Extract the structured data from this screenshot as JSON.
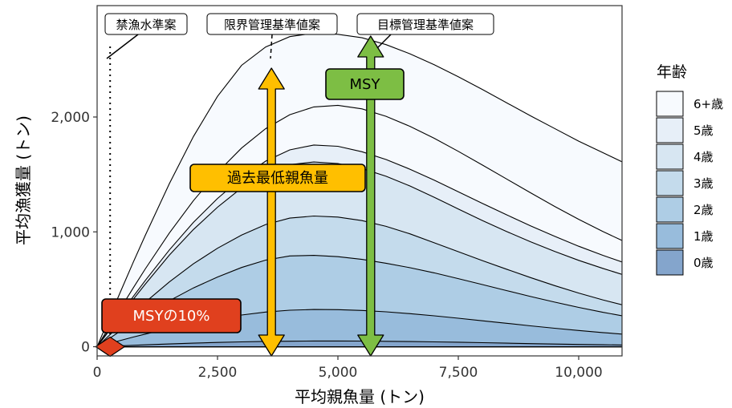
{
  "chart_data": {
    "type": "area",
    "xlabel": "平均親魚量 (トン)",
    "ylabel": "平均漁獲量 (トン)",
    "xlim": [
      0,
      10900
    ],
    "ylim": [
      -80,
      2970
    ],
    "x_ticks": [
      0,
      2500,
      5000,
      7500,
      10000
    ],
    "x_tick_labels": [
      "0",
      "2,500",
      "5,000",
      "7,500",
      "10,000"
    ],
    "y_ticks": [
      0,
      1000,
      2000
    ],
    "y_tick_labels": [
      "0",
      "1,000",
      "2,000"
    ],
    "grid": false,
    "legend": {
      "title": "年齢",
      "position": "right",
      "entries": [
        {
          "label": "6+歳",
          "color": "#F7FAFE"
        },
        {
          "label": "5歳",
          "color": "#E7EFF8"
        },
        {
          "label": "4歳",
          "color": "#D7E6F2"
        },
        {
          "label": "3歳",
          "color": "#C4DBEC"
        },
        {
          "label": "2歳",
          "color": "#AECDE5"
        },
        {
          "label": "1歳",
          "color": "#98BCDC"
        },
        {
          "label": "0歳",
          "color": "#84A5CC"
        }
      ]
    },
    "x": [
      0,
      250,
      500,
      750,
      1000,
      1500,
      2000,
      2500,
      3000,
      3500,
      4000,
      4500,
      5000,
      5500,
      6000,
      6500,
      7000,
      7500,
      8000,
      8500,
      9000,
      9500,
      10000,
      10500,
      10900
    ],
    "series": [
      {
        "name": "0歳",
        "values": [
          0,
          4,
          8,
          12,
          16,
          24,
          31,
          37,
          42,
          46,
          48,
          50,
          50,
          49,
          47,
          45,
          42,
          39,
          35,
          31,
          27,
          23,
          20,
          17,
          15
        ]
      },
      {
        "name": "1歳",
        "values": [
          0,
          28,
          56,
          84,
          110,
          160,
          205,
          243,
          276,
          302,
          318,
          324,
          323,
          316,
          304,
          288,
          269,
          248,
          226,
          204,
          182,
          161,
          141,
          123,
          110
        ]
      },
      {
        "name": "2歳",
        "values": [
          0,
          71,
          141,
          210,
          276,
          400,
          512,
          607,
          690,
          754,
          790,
          795,
          784,
          760,
          727,
          688,
          643,
          593,
          541,
          489,
          437,
          388,
          342,
          300,
          270
        ]
      },
      {
        "name": "3歳",
        "values": [
          0,
          98,
          196,
          293,
          387,
          564,
          722,
          857,
          972,
          1064,
          1120,
          1138,
          1129,
          1098,
          1048,
          982,
          905,
          827,
          750,
          675,
          602,
          532,
          467,
          408,
          365
        ]
      },
      {
        "name": "4歳",
        "values": [
          0,
          139,
          277,
          413,
          545,
          797,
          1021,
          1215,
          1383,
          1509,
          1585,
          1608,
          1595,
          1552,
          1484,
          1399,
          1301,
          1199,
          1099,
          1004,
          914,
          830,
          752,
          682,
          630
        ]
      },
      {
        "name": "5歳",
        "values": [
          0,
          147,
          293,
          437,
          577,
          843,
          1083,
          1291,
          1471,
          1616,
          1714,
          1756,
          1745,
          1698,
          1630,
          1545,
          1450,
          1349,
          1248,
          1149,
          1053,
          961,
          875,
          796,
          738
        ]
      },
      {
        "name": "6+歳",
        "values": [
          0,
          172,
          343,
          512,
          677,
          990,
          1272,
          1518,
          1730,
          1899,
          2020,
          2088,
          2102,
          2071,
          2006,
          1918,
          1815,
          1701,
          1582,
          1461,
          1340,
          1222,
          1109,
          1003,
          925
        ]
      }
    ],
    "total_curve": {
      "x": [
        0,
        250,
        500,
        750,
        1000,
        1500,
        2000,
        2500,
        3000,
        3500,
        4000,
        4500,
        5000,
        5500,
        6000,
        6500,
        7000,
        7500,
        8000,
        8500,
        9000,
        9500,
        10000,
        10500,
        10900
      ],
      "values": [
        0,
        248,
        493,
        735,
        970,
        1420,
        1830,
        2180,
        2450,
        2610,
        2700,
        2730,
        2720,
        2690,
        2630,
        2550,
        2455,
        2350,
        2240,
        2125,
        2010,
        1900,
        1790,
        1690,
        1610
      ]
    },
    "reference_points": [
      {
        "label": "禁漁水準案",
        "x": 270
      },
      {
        "label": "限界管理基準値案",
        "x": 3620
      },
      {
        "label": "目標管理基準値案",
        "x": 5680
      }
    ],
    "annotations": [
      {
        "label": "MSYの10%",
        "x": 270,
        "y": 0,
        "color": "#E0401E"
      },
      {
        "label": "過去最低親魚量",
        "x": 3620,
        "color": "#FFBF00"
      },
      {
        "label": "MSY",
        "x": 5680,
        "color": "#7DBE44"
      }
    ]
  }
}
